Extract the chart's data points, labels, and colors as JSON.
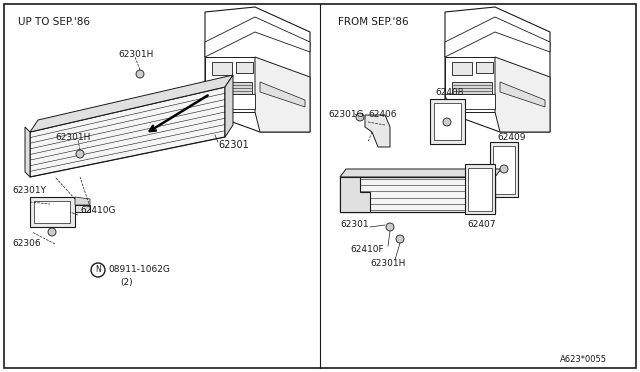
{
  "background_color": "#ffffff",
  "border_color": "#000000",
  "line_color": "#1a1a1a",
  "fig_width": 6.4,
  "fig_height": 3.72,
  "left_header": "UP TO SEP.'86",
  "right_header": "FROM SEP.'86",
  "footer": "A623*0055"
}
